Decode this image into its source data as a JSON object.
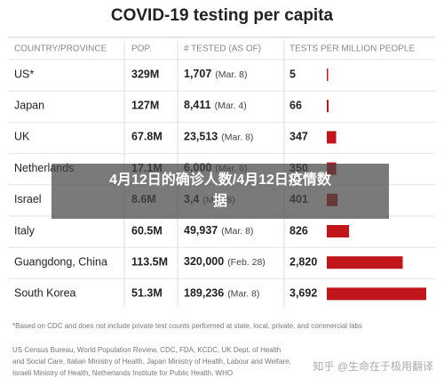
{
  "title": "COVID-19 testing per capita",
  "table": {
    "headers": [
      "COUNTRY/PROVINCE",
      "POP.",
      "# TESTED (AS OF)",
      "TESTS PER MILLION PEOPLE"
    ],
    "bar_color": "#c0161b",
    "rows": [
      {
        "country": "US*",
        "population": "329M",
        "tested": "1,707",
        "as_of": "(Mar. 8)",
        "per_million": 5
      },
      {
        "country": "Japan",
        "population": "127M",
        "tested": "8,411",
        "as_of": "(Mar. 4)",
        "per_million": 66
      },
      {
        "country": "UK",
        "population": "67.8M",
        "tested": "23,513",
        "as_of": "(Mar. 8)",
        "per_million": 347
      },
      {
        "country": "Netherlands",
        "population": "17.1M",
        "tested": "6,000",
        "as_of": "(Mar. 8)",
        "per_million": 350
      },
      {
        "country": "Israel",
        "population": "8.6M",
        "tested": "3,4",
        "as_of": "(Mar. 8)",
        "per_million": 401
      },
      {
        "country": "Italy",
        "population": "60.5M",
        "tested": "49,937",
        "as_of": "(Mar. 8)",
        "per_million": 826
      },
      {
        "country": "Guangdong, China",
        "population": "113.5M",
        "tested": "320,000",
        "as_of": "(Feb. 28)",
        "per_million": {
          "value": 2820,
          "label": "2,820"
        }
      },
      {
        "country": "South Korea",
        "population": "51.3M",
        "tested": "189,236",
        "as_of": "(Mar. 8)",
        "per_million": {
          "value": 3692,
          "label": "3,692"
        }
      }
    ]
  },
  "footnote": "*Based on CDC and does not include private test counts performed at state, local, private, and commercial labs",
  "sources": [
    "US Census Bureau, World Population Review, CDC, FDA, KCDC, UK Dept. of Health",
    "and Social Care, Italian Ministry of Health, Japan Ministry of Health, Labour and Welfare,",
    "Israeli Ministry of Health, Netherlands Institute for Public Health, WHO"
  ],
  "overlay": [
    "4月12日的确诊人数/4月12日疫情数",
    "据"
  ],
  "watermark": "知乎 @生命在于极用翻译"
}
